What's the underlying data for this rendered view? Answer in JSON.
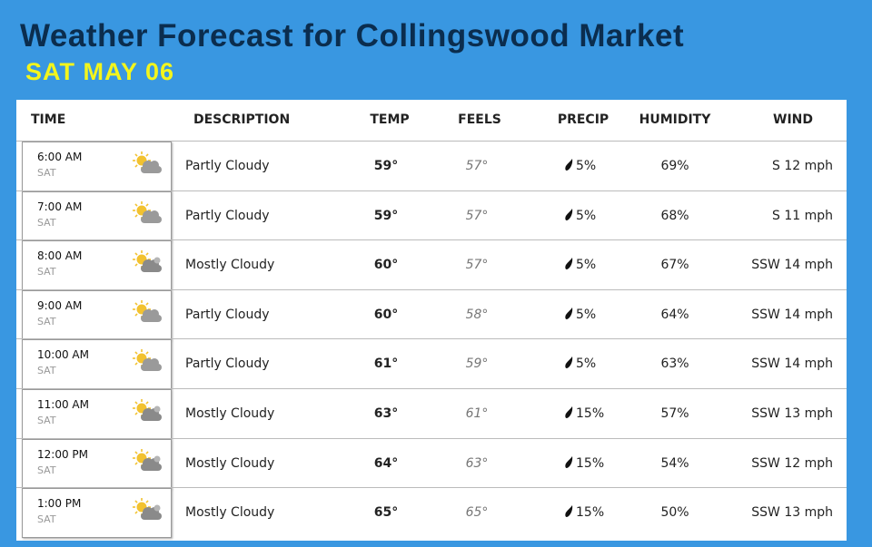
{
  "header": {
    "title": "Weather Forecast for Collingswood Market",
    "subtitle": "SAT MAY 06"
  },
  "table": {
    "columns": [
      "TIME",
      "DESCRIPTION",
      "TEMP",
      "FEELS",
      "PRECIP",
      "HUMIDITY",
      "WIND"
    ],
    "rows": [
      {
        "time": "6:00 AM",
        "day": "SAT",
        "description": "Partly Cloudy",
        "temp": "59°",
        "feels": "57°",
        "precip": "5%",
        "humidity": "69%",
        "wind": "S 12 mph"
      },
      {
        "time": "7:00 AM",
        "day": "SAT",
        "description": "Partly Cloudy",
        "temp": "59°",
        "feels": "57°",
        "precip": "5%",
        "humidity": "68%",
        "wind": "S 11 mph"
      },
      {
        "time": "8:00 AM",
        "day": "SAT",
        "description": "Mostly Cloudy",
        "temp": "60°",
        "feels": "57°",
        "precip": "5%",
        "humidity": "67%",
        "wind": "SSW 14 mph"
      },
      {
        "time": "9:00 AM",
        "day": "SAT",
        "description": "Partly Cloudy",
        "temp": "60°",
        "feels": "58°",
        "precip": "5%",
        "humidity": "64%",
        "wind": "SSW 14 mph"
      },
      {
        "time": "10:00 AM",
        "day": "SAT",
        "description": "Partly Cloudy",
        "temp": "61°",
        "feels": "59°",
        "precip": "5%",
        "humidity": "63%",
        "wind": "SSW 14 mph"
      },
      {
        "time": "11:00 AM",
        "day": "SAT",
        "description": "Mostly Cloudy",
        "temp": "63°",
        "feels": "61°",
        "precip": "15%",
        "humidity": "57%",
        "wind": "SSW 13 mph"
      },
      {
        "time": "12:00 PM",
        "day": "SAT",
        "description": "Mostly Cloudy",
        "temp": "64°",
        "feels": "63°",
        "precip": "15%",
        "humidity": "54%",
        "wind": "SSW 12 mph"
      },
      {
        "time": "1:00 PM",
        "day": "SAT",
        "description": "Mostly Cloudy",
        "temp": "65°",
        "feels": "65°",
        "precip": "15%",
        "humidity": "50%",
        "wind": "SSW 13 mph"
      }
    ]
  }
}
